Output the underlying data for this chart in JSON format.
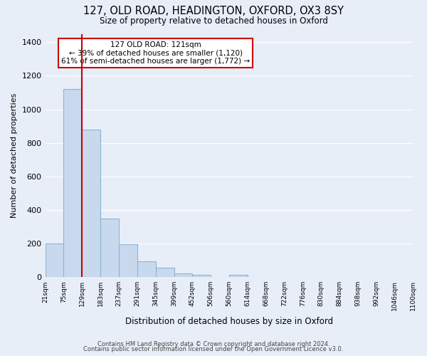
{
  "title": "127, OLD ROAD, HEADINGTON, OXFORD, OX3 8SY",
  "subtitle": "Size of property relative to detached houses in Oxford",
  "xlabel": "Distribution of detached houses by size in Oxford",
  "ylabel": "Number of detached properties",
  "bar_color": "#c8d9ee",
  "bar_edge_color": "#8ab4d8",
  "background_color": "#e8eef8",
  "grid_color": "#ffffff",
  "bin_edges": [
    21,
    75,
    129,
    183,
    237,
    291,
    345,
    399,
    452,
    506,
    560,
    614,
    668,
    722,
    776,
    830,
    884,
    938,
    992,
    1046,
    1100
  ],
  "bin_labels": [
    "21sqm",
    "75sqm",
    "129sqm",
    "183sqm",
    "237sqm",
    "291sqm",
    "345sqm",
    "399sqm",
    "452sqm",
    "506sqm",
    "560sqm",
    "614sqm",
    "668sqm",
    "722sqm",
    "776sqm",
    "830sqm",
    "884sqm",
    "938sqm",
    "992sqm",
    "1046sqm",
    "1100sqm"
  ],
  "bar_heights": [
    200,
    1120,
    880,
    350,
    195,
    95,
    55,
    22,
    15,
    0,
    12,
    0,
    0,
    0,
    0,
    0,
    0,
    0,
    0,
    0
  ],
  "red_line_x": 129,
  "annotation_title": "127 OLD ROAD: 121sqm",
  "annotation_line1": "← 39% of detached houses are smaller (1,120)",
  "annotation_line2": "61% of semi-detached houses are larger (1,772) →",
  "annotation_box_color": "#ffffff",
  "annotation_border_color": "#cc0000",
  "red_line_color": "#cc0000",
  "ylim": [
    0,
    1450
  ],
  "yticks": [
    0,
    200,
    400,
    600,
    800,
    1000,
    1200,
    1400
  ],
  "footer1": "Contains HM Land Registry data © Crown copyright and database right 2024.",
  "footer2": "Contains public sector information licensed under the Open Government Licence v3.0."
}
